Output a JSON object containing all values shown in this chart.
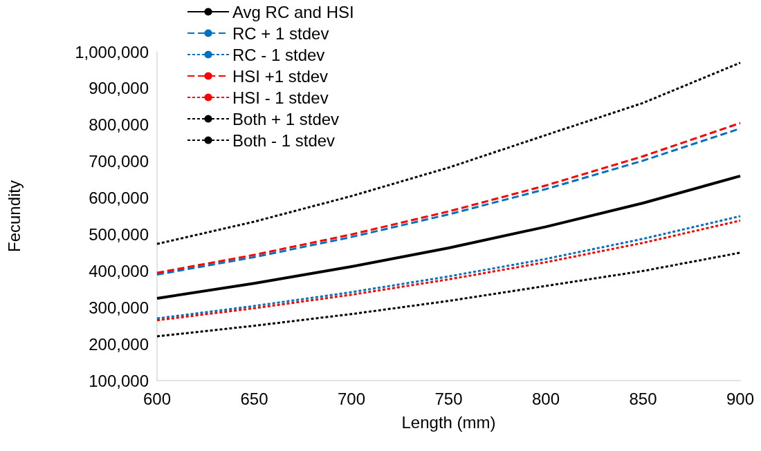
{
  "chart_data": {
    "type": "line",
    "xlabel": "Length (mm)",
    "ylabel": "Fecundity",
    "x": [
      600,
      650,
      700,
      750,
      800,
      850,
      900
    ],
    "series": [
      {
        "name": "Avg RC and HSI",
        "color": "#000000",
        "line_style": "solid",
        "values": [
          325000,
          366000,
          412000,
          463000,
          521000,
          586000,
          660000
        ]
      },
      {
        "name": "RC + 1 stdev",
        "color": "#0070c0",
        "line_style": "dashed",
        "values": [
          390000,
          438000,
          493000,
          555000,
          624000,
          702000,
          790000
        ]
      },
      {
        "name": "RC - 1 stdev",
        "color": "#0070c0",
        "line_style": "dotted",
        "values": [
          270000,
          304000,
          342000,
          385000,
          433000,
          488000,
          550000
        ]
      },
      {
        "name": "HSI +1 stdev",
        "color": "#ff0000",
        "line_style": "dashed",
        "values": [
          395000,
          444000,
          500000,
          563000,
          634000,
          714000,
          805000
        ]
      },
      {
        "name": "HSI - 1 stdev",
        "color": "#ff0000",
        "line_style": "dotted",
        "values": [
          265000,
          298000,
          335000,
          377000,
          424000,
          477000,
          538000
        ]
      },
      {
        "name": "Both + 1 stdev",
        "color": "#000000",
        "line_style": "dotted",
        "values": [
          474000,
          535000,
          605000,
          683000,
          772000,
          860000,
          970000
        ]
      },
      {
        "name": "Both - 1 stdev",
        "color": "#000000",
        "line_style": "dotted",
        "values": [
          221000,
          250000,
          282000,
          318000,
          359000,
          400000,
          450000
        ]
      }
    ],
    "xlim": [
      600,
      900
    ],
    "xticks": [
      600,
      650,
      700,
      750,
      800,
      850,
      900
    ],
    "ylim": [
      100000,
      1000000
    ],
    "yticks": [
      {
        "value": 100000,
        "label": "100,000"
      },
      {
        "value": 200000,
        "label": "200,000"
      },
      {
        "value": 300000,
        "label": "300,000"
      },
      {
        "value": 400000,
        "label": "400,000"
      },
      {
        "value": 500000,
        "label": "500,000"
      },
      {
        "value": 600000,
        "label": "600,000"
      },
      {
        "value": 700000,
        "label": "700,000"
      },
      {
        "value": 800000,
        "label": "800,000"
      },
      {
        "value": 900000,
        "label": "900,000"
      },
      {
        "value": 1000000,
        "label": "1,000,000"
      }
    ],
    "grid": false,
    "legend": "top",
    "marker": "none"
  }
}
